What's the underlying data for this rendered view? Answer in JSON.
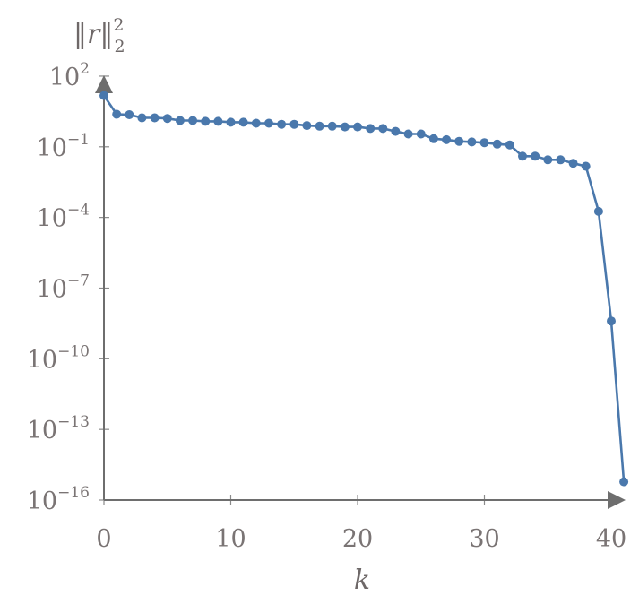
{
  "colors": {
    "series": "#4a78ac",
    "axis": "#6e6e6e",
    "text": "#7a7474"
  },
  "chart_data": {
    "type": "line",
    "title": "",
    "xlabel": "k",
    "ylabel": "‖r‖₂²",
    "ylabel_parts": {
      "norm_open": "‖",
      "var": "r",
      "norm_close": "‖",
      "superscript": "2",
      "subscript": "2"
    },
    "yscale": "log",
    "xlim": [
      0,
      41.3
    ],
    "ylim_exp": [
      -16,
      2.2
    ],
    "x_ticks": [
      {
        "value": 0,
        "label": "0"
      },
      {
        "value": 10,
        "label": "10"
      },
      {
        "value": 20,
        "label": "20"
      },
      {
        "value": 30,
        "label": "30"
      },
      {
        "value": 40,
        "label": "40"
      }
    ],
    "y_ticks": [
      {
        "exp": 2,
        "base": "10",
        "sup": "2"
      },
      {
        "exp": -1,
        "base": "10",
        "sup": "−1"
      },
      {
        "exp": -4,
        "base": "10",
        "sup": "−4"
      },
      {
        "exp": -7,
        "base": "10",
        "sup": "−7"
      },
      {
        "exp": -10,
        "base": "10",
        "sup": "−10"
      },
      {
        "exp": -13,
        "base": "10",
        "sup": "−13"
      },
      {
        "exp": -16,
        "base": "10",
        "sup": "−16"
      }
    ],
    "grid": false,
    "series": [
      {
        "x": [
          0,
          1,
          2,
          3,
          4,
          5,
          6,
          7,
          8,
          9,
          10,
          11,
          12,
          13,
          14,
          15,
          16,
          17,
          18,
          19,
          20,
          21,
          22,
          23,
          24,
          25,
          26,
          27,
          28,
          29,
          30,
          31,
          32,
          33,
          34,
          35,
          36,
          37,
          38,
          39,
          40,
          41
        ],
        "y": [
          15,
          2.4,
          2.3,
          1.7,
          1.7,
          1.6,
          1.3,
          1.3,
          1.2,
          1.2,
          1.1,
          1.1,
          1.0,
          1.0,
          0.9,
          0.9,
          0.8,
          0.75,
          0.75,
          0.7,
          0.7,
          0.6,
          0.6,
          0.45,
          0.35,
          0.35,
          0.22,
          0.2,
          0.17,
          0.16,
          0.15,
          0.13,
          0.12,
          0.04,
          0.04,
          0.028,
          0.028,
          0.02,
          0.015,
          0.00018,
          4e-09,
          6e-16
        ]
      }
    ]
  }
}
